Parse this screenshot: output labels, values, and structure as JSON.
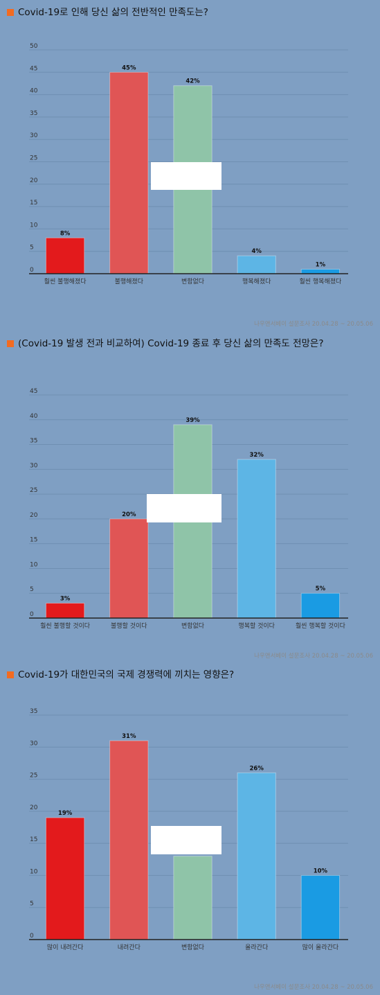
{
  "source": "나우앤서베이 설문조사 20.04.28 ~ 20.05.06",
  "colors": {
    "background": "#7f9fc3",
    "title_marker": "#f26b21",
    "bar_series": [
      "#e31a1c",
      "#e05555",
      "#8fc4a8",
      "#5db5e5",
      "#1a9be3"
    ]
  },
  "chart_data": [
    {
      "type": "bar",
      "title": "Covid-19로 인해 당신 삶의 전반적인 만족도는?",
      "categories": [
        "훨씬 불행해졌다",
        "불행해졌다",
        "변함없다",
        "행복해졌다",
        "훨씬 행복해졌다"
      ],
      "values": [
        8,
        45,
        42,
        4,
        1
      ],
      "data_labels": [
        "8%",
        "45%",
        "42%",
        "4%",
        "1%"
      ],
      "ylim": [
        0,
        50
      ],
      "yticks": [
        0,
        5,
        10,
        15,
        20,
        25,
        30,
        35,
        40,
        45,
        50
      ],
      "grid": true
    },
    {
      "type": "bar",
      "title": "(Covid-19 발생 전과 비교하여) Covid-19 종료 후 당신 삶의 만족도 전망은?",
      "categories": [
        "훨씬 불행할 것이다",
        "불행할 것이다",
        "변함없다",
        "행복할 것이다",
        "훨씬 행복할 것이다"
      ],
      "values": [
        3,
        20,
        39,
        32,
        5
      ],
      "data_labels": [
        "3%",
        "20%",
        "39%",
        "32%",
        "5%"
      ],
      "ylim": [
        0,
        45
      ],
      "yticks": [
        0,
        5,
        10,
        15,
        20,
        25,
        30,
        35,
        40,
        45
      ],
      "grid": true
    },
    {
      "type": "bar",
      "title": "Covid-19가 대한민국의 국제 경쟁력에 끼치는 영향은?",
      "categories": [
        "많이 내려간다",
        "내려간다",
        "변함없다",
        "올라간다",
        "많이 올라간다"
      ],
      "values": [
        19,
        31,
        13,
        26,
        10
      ],
      "data_labels": [
        "19%",
        "31%",
        "13%",
        "26%",
        "10%"
      ],
      "ylim": [
        0,
        35
      ],
      "yticks": [
        0,
        5,
        10,
        15,
        20,
        25,
        30,
        35
      ],
      "grid": true
    }
  ]
}
